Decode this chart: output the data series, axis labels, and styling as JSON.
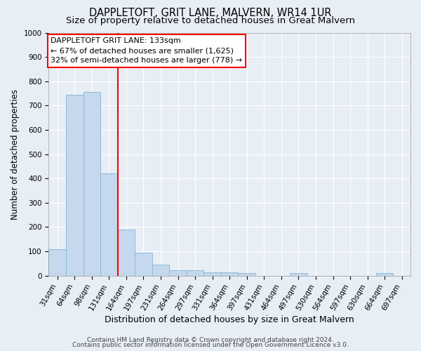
{
  "title": "DAPPLETOFT, GRIT LANE, MALVERN, WR14 1UR",
  "subtitle": "Size of property relative to detached houses in Great Malvern",
  "xlabel": "Distribution of detached houses by size in Great Malvern",
  "ylabel": "Number of detached properties",
  "categories": [
    "31sqm",
    "64sqm",
    "98sqm",
    "131sqm",
    "164sqm",
    "197sqm",
    "231sqm",
    "264sqm",
    "297sqm",
    "331sqm",
    "364sqm",
    "397sqm",
    "431sqm",
    "464sqm",
    "497sqm",
    "530sqm",
    "564sqm",
    "597sqm",
    "630sqm",
    "664sqm",
    "697sqm"
  ],
  "values": [
    110,
    745,
    755,
    420,
    190,
    95,
    45,
    22,
    22,
    15,
    15,
    12,
    0,
    0,
    10,
    0,
    0,
    0,
    0,
    10,
    0
  ],
  "bar_color": "#c5d8ed",
  "bar_edge_color": "#8fb8d8",
  "ylim": [
    0,
    1000
  ],
  "yticks": [
    0,
    100,
    200,
    300,
    400,
    500,
    600,
    700,
    800,
    900,
    1000
  ],
  "red_line_x": 3.5,
  "annotation_box_text": "DAPPLETOFT GRIT LANE: 133sqm\n← 67% of detached houses are smaller (1,625)\n32% of semi-detached houses are larger (778) →",
  "footer_line1": "Contains HM Land Registry data © Crown copyright and database right 2024.",
  "footer_line2": "Contains public sector information licensed under the Open Government Licence v3.0.",
  "background_color": "#e8eef6",
  "plot_bg_color": "#e8eef6",
  "grid_color": "#ffffff",
  "title_fontsize": 10.5,
  "subtitle_fontsize": 9.5,
  "xlabel_fontsize": 9,
  "ylabel_fontsize": 8.5,
  "tick_fontsize": 7.5,
  "annotation_fontsize": 8,
  "footer_fontsize": 6.5
}
